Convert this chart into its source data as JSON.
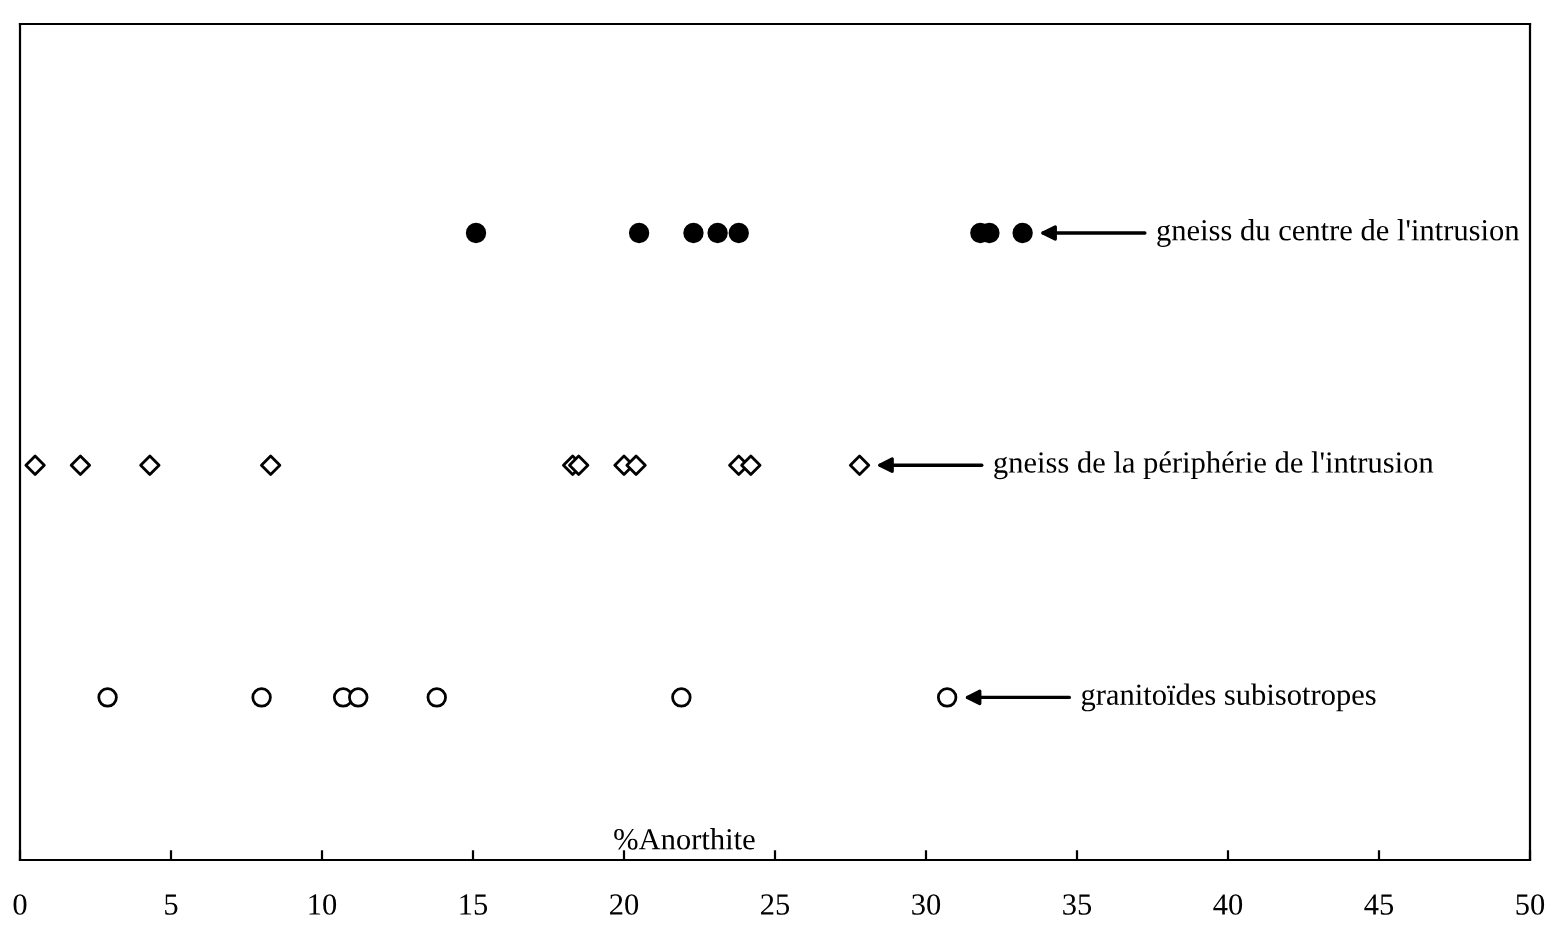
{
  "chart_data": {
    "type": "scatter",
    "orientation": "horizontal",
    "xlabel": "%Anorthite",
    "xlim": [
      0,
      50
    ],
    "xticks": [
      0,
      5,
      10,
      15,
      20,
      25,
      30,
      35,
      40,
      45,
      50
    ],
    "legend": false,
    "categories": [
      "gneiss du centre de l'intrusion",
      "gneiss de la périphérie de l'intrusion",
      "granitoïdes subisotropes"
    ],
    "series": [
      {
        "color": "#000000",
        "values": [
          15.1,
          0.5,
          2.9
        ]
      },
      {
        "color": "#000000",
        "values": [
          20.5,
          2.0,
          8.0
        ]
      },
      {
        "color": "#000000",
        "values": [
          22.3,
          4.3,
          10.7
        ]
      },
      {
        "color": "#000000",
        "values": [
          23.1,
          8.3,
          11.2
        ]
      },
      {
        "color": "#000000",
        "values": [
          23.8,
          18.3,
          13.8
        ]
      },
      {
        "color": "#000000",
        "values": [
          31.8,
          18.5,
          21.9
        ]
      },
      {
        "color": "#000000",
        "values": [
          32.1,
          20.0,
          30.7
        ]
      },
      {
        "color": "#000000",
        "values": [
          33.2,
          20.4,
          null
        ]
      },
      {
        "color": "#000000",
        "values": [
          null,
          23.8,
          null
        ]
      },
      {
        "color": "#000000",
        "values": [
          null,
          24.2,
          null
        ]
      },
      {
        "color": "#000000",
        "values": [
          null,
          27.8,
          null
        ]
      }
    ]
  }
}
